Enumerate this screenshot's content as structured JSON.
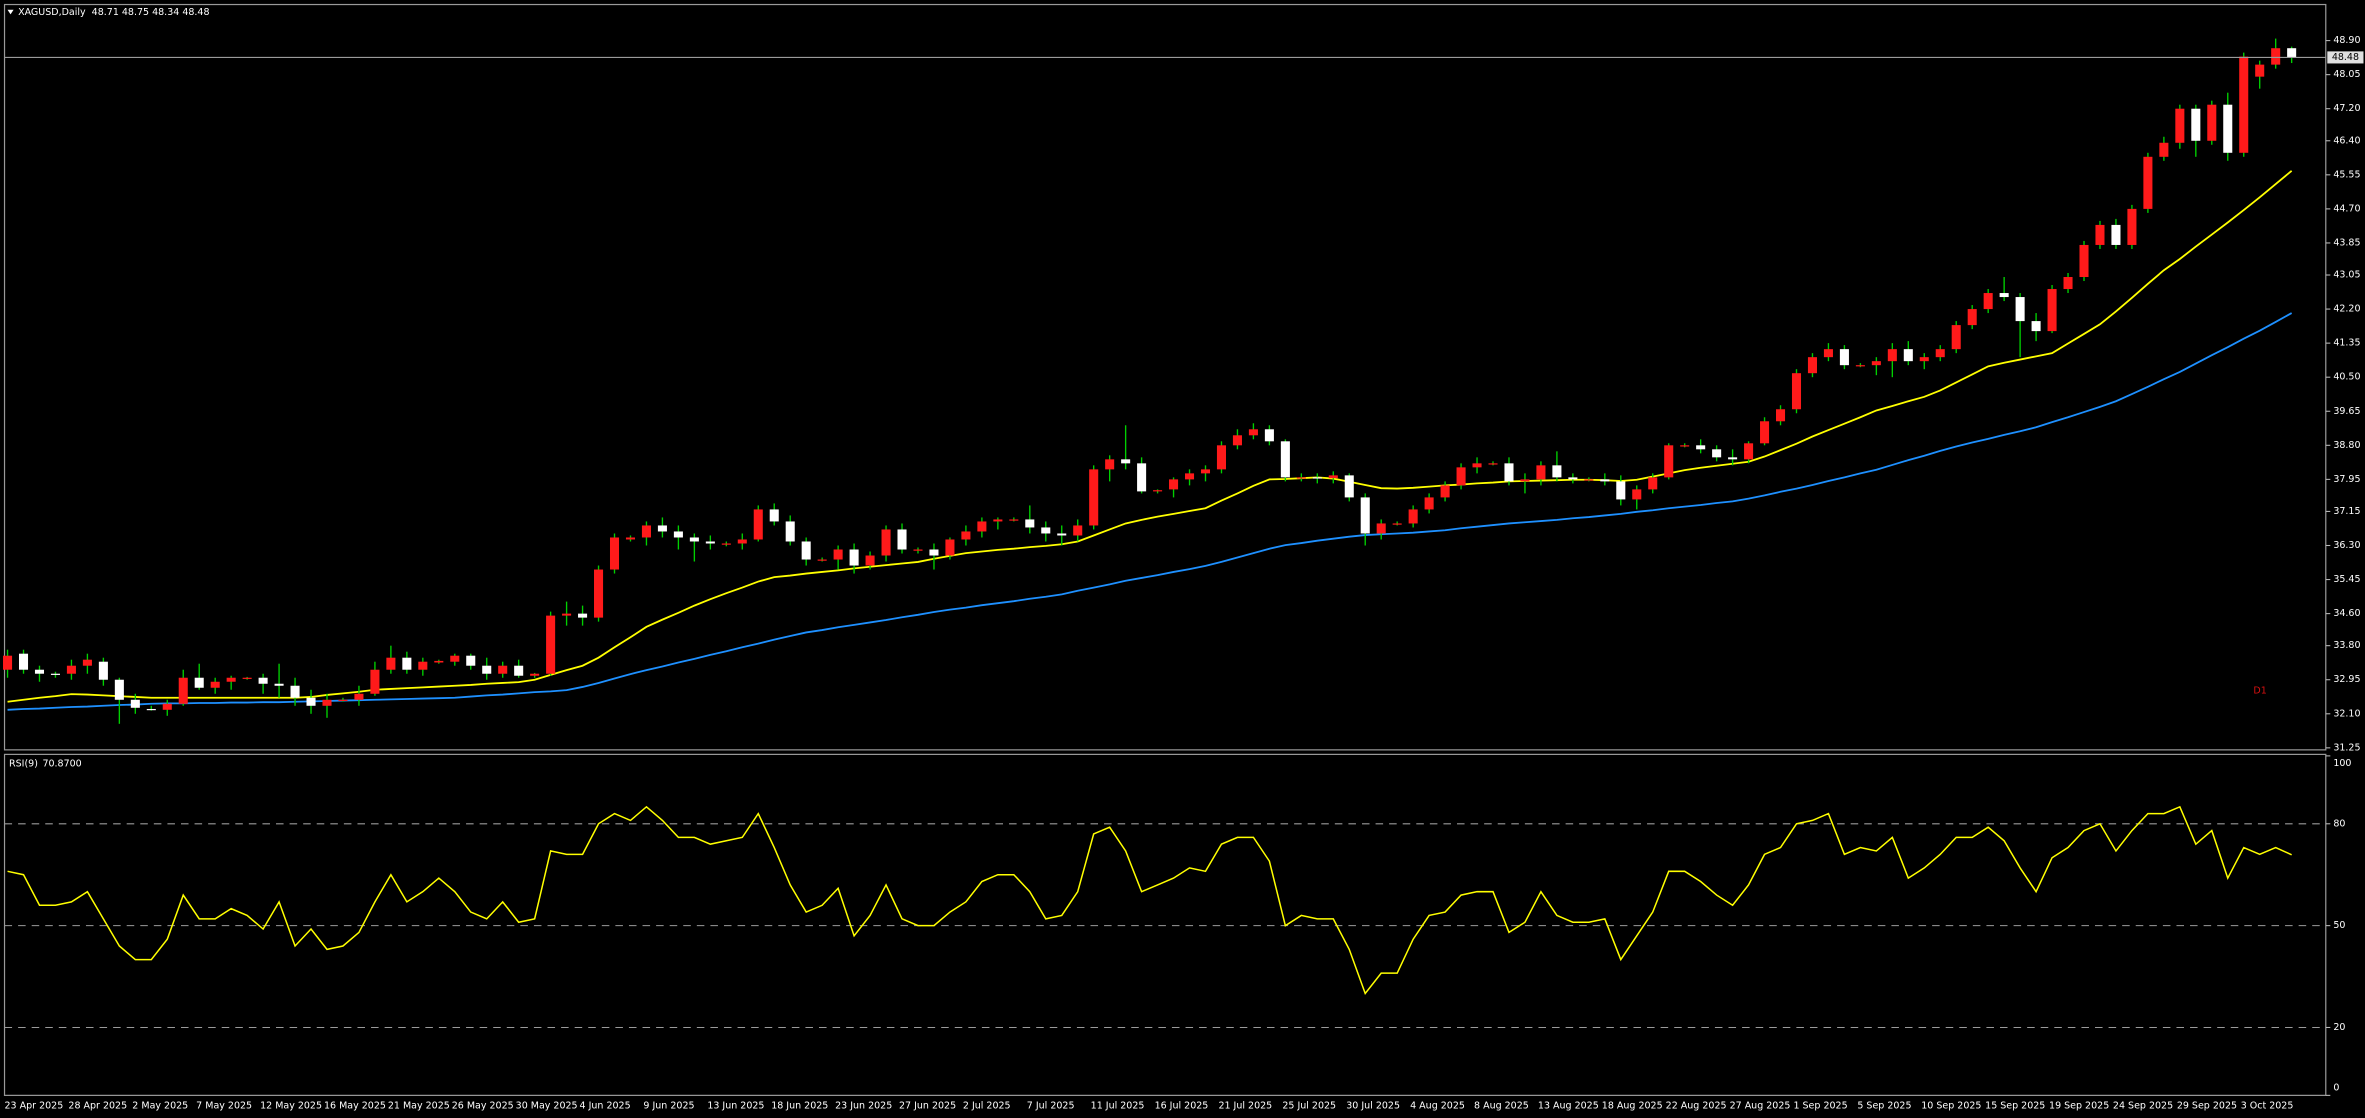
{
  "chart_data": [
    {
      "type": "candlestick",
      "title": "XAGUSD,Daily",
      "annotation": "D1",
      "annotation_color": "#d81010",
      "up_color": "#ff1a1a",
      "down_color": "#ffffff",
      "wick_color": "#00d000",
      "open": [
        33.2,
        33.6,
        33.2,
        33.1,
        33.1,
        33.3,
        33.4,
        32.95,
        32.45,
        32.22,
        32.2,
        32.35,
        33.0,
        32.75,
        32.9,
        32.98,
        33.0,
        32.85,
        32.8,
        32.5,
        32.3,
        32.45,
        32.45,
        32.6,
        33.2,
        33.5,
        33.2,
        33.38,
        33.4,
        33.55,
        33.3,
        33.1,
        33.3,
        33.05,
        33.1,
        34.55,
        34.6,
        34.5,
        35.7,
        36.45,
        36.5,
        36.8,
        36.65,
        36.5,
        36.4,
        36.32,
        36.35,
        36.45,
        37.2,
        36.9,
        36.4,
        35.95,
        35.95,
        36.2,
        35.8,
        36.05,
        36.7,
        36.18,
        36.2,
        36.05,
        36.45,
        36.65,
        36.9,
        36.93,
        36.95,
        36.75,
        36.6,
        36.55,
        36.8,
        38.2,
        38.45,
        38.35,
        37.65,
        37.7,
        37.95,
        38.1,
        38.2,
        38.8,
        39.05,
        39.2,
        38.9,
        38.0,
        38.0,
        37.98,
        38.05,
        37.5,
        36.6,
        36.85,
        36.85,
        37.2,
        37.5,
        37.8,
        38.25,
        38.33,
        38.35,
        37.9,
        37.95,
        38.3,
        38.0,
        37.93,
        37.95,
        37.9,
        37.45,
        37.7,
        38.0,
        38.78,
        38.8,
        38.7,
        38.5,
        38.45,
        38.85,
        39.4,
        39.7,
        40.6,
        41.0,
        41.2,
        40.78,
        40.8,
        40.9,
        41.2,
        40.9,
        41.0,
        41.2,
        41.8,
        42.2,
        42.6,
        42.5,
        41.9,
        41.65,
        42.7,
        43.0,
        43.8,
        44.3,
        43.8,
        44.7,
        46.0,
        46.35,
        47.2,
        46.4,
        47.3,
        46.1,
        48.0,
        48.3,
        48.71
      ],
      "high": [
        33.7,
        33.7,
        33.3,
        33.15,
        33.45,
        33.6,
        33.5,
        33.0,
        32.6,
        32.3,
        32.45,
        33.2,
        33.35,
        33.0,
        33.05,
        33.02,
        33.1,
        33.35,
        33.0,
        32.7,
        32.6,
        32.5,
        32.8,
        33.4,
        33.8,
        33.65,
        33.5,
        33.45,
        33.6,
        33.6,
        33.5,
        33.4,
        33.45,
        33.12,
        34.65,
        34.9,
        34.8,
        35.8,
        36.6,
        36.55,
        36.9,
        37.0,
        36.8,
        36.6,
        36.55,
        36.4,
        36.6,
        37.3,
        37.35,
        37.05,
        36.5,
        36.0,
        36.3,
        36.35,
        36.15,
        36.8,
        36.85,
        36.25,
        36.35,
        36.5,
        36.8,
        37.0,
        37.0,
        37.0,
        37.3,
        36.9,
        36.8,
        36.95,
        38.3,
        38.55,
        39.3,
        38.5,
        37.7,
        38.0,
        38.2,
        38.3,
        38.9,
        39.2,
        39.35,
        39.3,
        38.95,
        38.1,
        38.1,
        38.15,
        38.1,
        37.6,
        36.95,
        36.9,
        37.3,
        37.6,
        37.9,
        38.35,
        38.5,
        38.4,
        38.5,
        38.1,
        38.4,
        38.65,
        38.1,
        38.0,
        38.1,
        38.05,
        37.8,
        38.1,
        38.85,
        38.85,
        38.95,
        38.8,
        38.7,
        38.9,
        39.5,
        39.8,
        40.7,
        41.1,
        41.35,
        41.3,
        40.85,
        41.0,
        41.35,
        41.4,
        41.1,
        41.3,
        41.9,
        42.3,
        42.7,
        43.0,
        42.6,
        42.1,
        42.8,
        43.1,
        43.9,
        44.4,
        44.45,
        44.8,
        46.1,
        46.5,
        47.3,
        47.3,
        47.4,
        47.6,
        48.6,
        48.4,
        48.95,
        48.75
      ],
      "low": [
        33.0,
        33.1,
        32.9,
        33.0,
        32.95,
        33.1,
        32.8,
        31.85,
        32.1,
        32.18,
        32.05,
        32.3,
        32.7,
        32.6,
        32.7,
        32.95,
        32.6,
        32.5,
        32.3,
        32.1,
        32.0,
        32.4,
        32.3,
        32.55,
        33.1,
        33.1,
        33.05,
        33.35,
        33.3,
        33.2,
        32.95,
        33.0,
        33.0,
        33.0,
        33.05,
        34.3,
        34.3,
        34.4,
        35.6,
        36.4,
        36.3,
        36.5,
        36.2,
        35.9,
        36.2,
        36.28,
        36.2,
        36.4,
        36.8,
        36.3,
        35.8,
        35.9,
        35.7,
        35.6,
        35.7,
        35.9,
        36.1,
        36.1,
        35.7,
        35.95,
        36.3,
        36.5,
        36.7,
        36.9,
        36.6,
        36.4,
        36.3,
        36.4,
        36.7,
        37.9,
        38.2,
        37.6,
        37.6,
        37.5,
        37.8,
        37.9,
        38.1,
        38.7,
        38.95,
        38.8,
        37.9,
        37.9,
        37.85,
        37.85,
        37.4,
        36.3,
        36.45,
        36.8,
        36.75,
        37.1,
        37.4,
        37.7,
        38.1,
        38.3,
        37.8,
        37.6,
        37.8,
        37.9,
        37.85,
        37.9,
        37.8,
        37.3,
        37.2,
        37.6,
        37.95,
        38.75,
        38.6,
        38.4,
        38.3,
        38.35,
        38.8,
        39.3,
        39.6,
        40.5,
        40.9,
        40.7,
        40.75,
        40.55,
        40.5,
        40.8,
        40.7,
        40.9,
        41.1,
        41.7,
        42.1,
        42.4,
        41.0,
        41.4,
        41.6,
        42.6,
        42.9,
        43.7,
        43.7,
        43.7,
        44.6,
        45.9,
        46.2,
        46.0,
        46.3,
        45.9,
        46.0,
        47.7,
        48.2,
        48.34
      ],
      "close": [
        33.55,
        33.2,
        33.1,
        33.08,
        33.3,
        33.45,
        32.95,
        32.45,
        32.25,
        32.2,
        32.35,
        33.0,
        32.75,
        32.9,
        33.0,
        33.0,
        32.85,
        32.8,
        32.5,
        32.3,
        32.45,
        32.45,
        32.6,
        33.2,
        33.5,
        33.2,
        33.4,
        33.42,
        33.55,
        33.3,
        33.1,
        33.3,
        33.05,
        33.1,
        34.55,
        34.6,
        34.5,
        35.7,
        36.5,
        36.5,
        36.8,
        36.65,
        36.5,
        36.4,
        36.35,
        36.35,
        36.45,
        37.2,
        36.9,
        36.4,
        35.95,
        35.95,
        36.2,
        35.8,
        36.05,
        36.7,
        36.2,
        36.2,
        36.05,
        36.45,
        36.65,
        36.9,
        36.95,
        36.95,
        36.75,
        36.6,
        36.55,
        36.8,
        38.2,
        38.45,
        38.35,
        37.65,
        37.68,
        37.95,
        38.1,
        38.2,
        38.8,
        39.05,
        39.2,
        38.9,
        38.0,
        38.0,
        37.98,
        38.05,
        37.5,
        36.6,
        36.85,
        36.85,
        37.2,
        37.5,
        37.8,
        38.25,
        38.35,
        38.35,
        37.9,
        37.95,
        38.3,
        38.0,
        37.95,
        37.95,
        37.9,
        37.45,
        37.7,
        38.0,
        38.8,
        38.8,
        38.7,
        38.5,
        38.45,
        38.85,
        39.4,
        39.7,
        40.6,
        41.0,
        41.2,
        40.8,
        40.8,
        40.9,
        41.2,
        40.9,
        41.0,
        41.2,
        41.8,
        42.2,
        42.6,
        42.5,
        41.9,
        41.65,
        42.7,
        43.0,
        43.8,
        44.3,
        43.8,
        44.7,
        46.0,
        46.35,
        47.2,
        46.4,
        47.3,
        46.1,
        48.5,
        48.3,
        48.71,
        48.48
      ],
      "moving_averages": [
        {
          "color": "#ffff00",
          "values": [
            32.4,
            32.45,
            32.5,
            32.54,
            32.59,
            32.58,
            32.56,
            32.54,
            32.52,
            32.5,
            32.5,
            32.5,
            32.5,
            32.5,
            32.5,
            32.5,
            32.5,
            32.5,
            32.5,
            32.52,
            32.57,
            32.61,
            32.65,
            32.7,
            32.72,
            32.74,
            32.76,
            32.78,
            32.8,
            32.82,
            32.85,
            32.87,
            32.89,
            32.95,
            33.07,
            33.19,
            33.3,
            33.5,
            33.76,
            34.01,
            34.27,
            34.45,
            34.62,
            34.8,
            34.96,
            35.11,
            35.25,
            35.4,
            35.51,
            35.55,
            35.6,
            35.64,
            35.68,
            35.73,
            35.77,
            35.81,
            35.85,
            35.89,
            35.97,
            36.04,
            36.11,
            36.15,
            36.19,
            36.22,
            36.26,
            36.29,
            36.33,
            36.4,
            36.55,
            36.7,
            36.85,
            36.94,
            37.02,
            37.09,
            37.16,
            37.23,
            37.42,
            37.6,
            37.79,
            37.95,
            37.96,
            37.98,
            38.0,
            37.97,
            37.89,
            37.81,
            37.73,
            37.72,
            37.74,
            37.77,
            37.8,
            37.82,
            37.85,
            37.87,
            37.9,
            37.91,
            37.92,
            37.93,
            37.94,
            37.94,
            37.93,
            37.91,
            37.94,
            38.02,
            38.1,
            38.18,
            38.24,
            38.29,
            38.34,
            38.39,
            38.52,
            38.68,
            38.84,
            39.02,
            39.18,
            39.34,
            39.5,
            39.67,
            39.78,
            39.9,
            40.01,
            40.17,
            40.37,
            40.57,
            40.77,
            40.86,
            40.94,
            41.02,
            41.1,
            41.34,
            41.58,
            41.82,
            42.14,
            42.48,
            42.83,
            43.17,
            43.45,
            43.76,
            44.06,
            44.36,
            44.67,
            44.99,
            45.32,
            45.65
          ]
        },
        {
          "color": "#1e90ff",
          "values": [
            32.2,
            32.22,
            32.23,
            32.25,
            32.27,
            32.28,
            32.3,
            32.32,
            32.33,
            32.35,
            32.36,
            32.36,
            32.37,
            32.37,
            32.38,
            32.38,
            32.39,
            32.39,
            32.4,
            32.41,
            32.42,
            32.43,
            32.44,
            32.45,
            32.46,
            32.47,
            32.48,
            32.49,
            32.5,
            32.53,
            32.56,
            32.58,
            32.61,
            32.64,
            32.66,
            32.69,
            32.77,
            32.87,
            32.98,
            33.09,
            33.19,
            33.28,
            33.38,
            33.47,
            33.57,
            33.66,
            33.76,
            33.85,
            33.95,
            34.04,
            34.13,
            34.19,
            34.26,
            34.32,
            34.38,
            34.44,
            34.51,
            34.57,
            34.64,
            34.7,
            34.75,
            34.81,
            34.86,
            34.91,
            34.97,
            35.02,
            35.08,
            35.17,
            35.25,
            35.33,
            35.42,
            35.49,
            35.56,
            35.64,
            35.71,
            35.79,
            35.89,
            36.0,
            36.11,
            36.22,
            36.31,
            36.36,
            36.42,
            36.47,
            36.52,
            36.56,
            36.58,
            36.6,
            36.62,
            36.65,
            36.68,
            36.73,
            36.77,
            36.81,
            36.85,
            36.88,
            36.91,
            36.94,
            36.98,
            37.01,
            37.05,
            37.09,
            37.14,
            37.18,
            37.23,
            37.27,
            37.31,
            37.36,
            37.4,
            37.47,
            37.55,
            37.64,
            37.72,
            37.81,
            37.91,
            38.0,
            38.1,
            38.19,
            38.31,
            38.43,
            38.54,
            38.66,
            38.77,
            38.87,
            38.96,
            39.06,
            39.15,
            39.25,
            39.38,
            39.5,
            39.63,
            39.76,
            39.9,
            40.08,
            40.26,
            40.45,
            40.63,
            40.84,
            41.05,
            41.25,
            41.46,
            41.66,
            41.88,
            42.1
          ]
        }
      ],
      "ylim": [
        31.2,
        49.8
      ],
      "yticks": [
        31.25,
        {
          "value": 32.1,
          "label": "32.10"
        },
        32.95,
        {
          "value": 33.8,
          "label": "33.80"
        },
        {
          "value": 34.6,
          "label": "34.60"
        },
        35.45,
        {
          "value": 36.3,
          "label": "36.30"
        },
        37.15,
        37.95,
        {
          "value": 38.8,
          "label": "38.80"
        },
        39.65,
        {
          "value": 40.5,
          "label": "40.50"
        },
        41.35,
        {
          "value": 42.2,
          "label": "42.20"
        },
        43.05,
        43.85,
        {
          "value": 44.7,
          "label": "44.70"
        },
        45.55,
        {
          "value": 46.4,
          "label": "46.40"
        },
        {
          "value": 47.2,
          "label": "47.20"
        },
        48.05,
        {
          "value": 48.9,
          "label": "48.90"
        }
      ],
      "grid": false
    },
    {
      "type": "line",
      "title": "RSI(9)",
      "last_value_label": "70.8700",
      "color": "#ffff00",
      "categories": [
        "23 Apr 2025",
        null,
        null,
        null,
        "28 Apr 2025",
        null,
        null,
        null,
        "2 May 2025",
        null,
        null,
        null,
        "7 May 2025",
        null,
        null,
        null,
        "12 May 2025",
        null,
        null,
        null,
        "16 May 2025",
        null,
        null,
        null,
        "21 May 2025",
        null,
        null,
        null,
        "26 May 2025",
        null,
        null,
        null,
        "30 May 2025",
        null,
        null,
        null,
        "4 Jun 2025",
        null,
        null,
        null,
        "9 Jun 2025",
        null,
        null,
        null,
        "13 Jun 2025",
        null,
        null,
        null,
        "18 Jun 2025",
        null,
        null,
        null,
        "23 Jun 2025",
        null,
        null,
        null,
        "27 Jun 2025",
        null,
        null,
        null,
        "2 Jul 2025",
        null,
        null,
        null,
        "7 Jul 2025",
        null,
        null,
        null,
        "11 Jul 2025",
        null,
        null,
        null,
        "16 Jul 2025",
        null,
        null,
        null,
        "21 Jul 2025",
        null,
        null,
        null,
        "25 Jul 2025",
        null,
        null,
        null,
        "30 Jul 2025",
        null,
        null,
        null,
        "4 Aug 2025",
        null,
        null,
        null,
        "8 Aug 2025",
        null,
        null,
        null,
        "13 Aug 2025",
        null,
        null,
        null,
        "18 Aug 2025",
        null,
        null,
        null,
        "22 Aug 2025",
        null,
        null,
        null,
        "27 Aug 2025",
        null,
        null,
        null,
        "1 Sep 2025",
        null,
        null,
        null,
        "5 Sep 2025",
        null,
        null,
        null,
        "10 Sep 2025",
        null,
        null,
        null,
        "15 Sep 2025",
        null,
        null,
        null,
        "19 Sep 2025",
        null,
        null,
        null,
        "24 Sep 2025",
        null,
        null,
        null,
        "29 Sep 2025",
        null,
        null,
        null,
        "3 Oct 2025",
        null,
        null,
        null
      ],
      "values": [
        66,
        65,
        56,
        56,
        57,
        60,
        52,
        44,
        40,
        40,
        46,
        59,
        52,
        52,
        55,
        53,
        49,
        57,
        44,
        49,
        43,
        44,
        48,
        57,
        65,
        57,
        60,
        64,
        60,
        54,
        52,
        57,
        51,
        52,
        72,
        71,
        71,
        80,
        83,
        81,
        85,
        81,
        76,
        76,
        74,
        75,
        76,
        83,
        73,
        62,
        54,
        56,
        61,
        47,
        53,
        62,
        52,
        50,
        50,
        54,
        57,
        63,
        65,
        65,
        60,
        52,
        53,
        60,
        77,
        79,
        72,
        60,
        62,
        64,
        67,
        66,
        74,
        76,
        76,
        69,
        50,
        53,
        52,
        52,
        43,
        30,
        36,
        36,
        46,
        53,
        54,
        59,
        60,
        60,
        48,
        51,
        60,
        53,
        51,
        51,
        52,
        40,
        47,
        54,
        66,
        66,
        63,
        59,
        56,
        62,
        71,
        73,
        80,
        81,
        83,
        71,
        73,
        72,
        76,
        64,
        67,
        71,
        76,
        76,
        79,
        75,
        67,
        60,
        70,
        73,
        78,
        80,
        72,
        78,
        83,
        83,
        85,
        74,
        78,
        64,
        73,
        71,
        73,
        70.87
      ],
      "ylim": [
        0,
        100
      ],
      "yticks": [
        0,
        20,
        50,
        80,
        100
      ],
      "levels": [
        20,
        50,
        80
      ]
    }
  ]
}
